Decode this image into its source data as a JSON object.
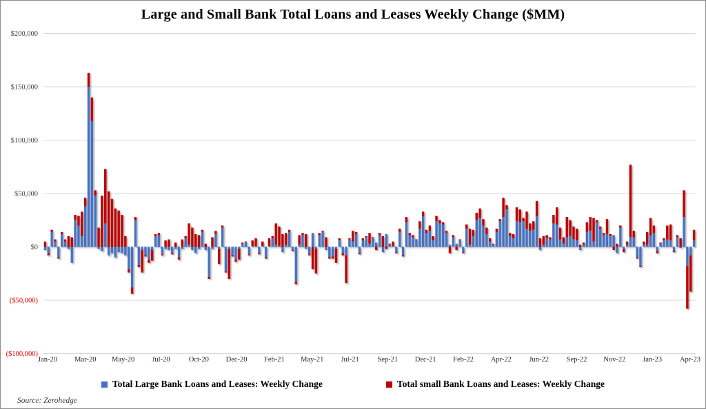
{
  "source": "Source: Zerohedge",
  "chart_data": {
    "type": "bar",
    "stacked": true,
    "title": "Large and Small Bank Total Loans and Leases Weekly Change ($MM)",
    "xlabel": "",
    "ylabel": "",
    "ylim": [
      -100000,
      200000
    ],
    "grid": true,
    "legend_position": "bottom",
    "axis": {
      "y_tick_labels": [
        "$200,000",
        "$150,000",
        "$100,000",
        "$50,000",
        "$0",
        "($50,000)",
        "($100,000)"
      ],
      "y_tick_values": [
        200000,
        150000,
        100000,
        50000,
        0,
        -50000,
        -100000
      ],
      "positive_tick_color": "#404040",
      "negative_tick_color": "#e00000",
      "x_tick_labels": [
        "Jan-20",
        "Mar-20",
        "May-20",
        "Jul-20",
        "Oct-20",
        "Dec-20",
        "Feb-21",
        "May-21",
        "Jul-21",
        "Sep-21",
        "Dec-21",
        "Feb-22",
        "Apr-22",
        "Jun-22",
        "Sep-22",
        "Nov-22",
        "Jan-23",
        "Apr-23"
      ],
      "gridline_color": "#d9d9d9",
      "zero_line_color": "#1a1a1a"
    },
    "series": [
      {
        "name": "Total Large Bank Loans and Leases: Weekly Change",
        "color": "#4472C4",
        "values": [
          -3000,
          -6000,
          14000,
          5000,
          -10000,
          12000,
          5000,
          -2000,
          -15000,
          25000,
          20000,
          10000,
          38000,
          150000,
          118000,
          48000,
          -2000,
          -4000,
          22000,
          -8000,
          -6000,
          -10000,
          -5000,
          -6000,
          -8000,
          -21000,
          -38000,
          25000,
          -17000,
          -3000,
          -8000,
          -12000,
          -3000,
          10000,
          11000,
          -7000,
          -2000,
          -3000,
          -6000,
          -2000,
          -10000,
          -2000,
          8000,
          2000,
          -3000,
          -6000,
          -2000,
          14000,
          -3000,
          -28000,
          -2000,
          12000,
          -2000,
          18000,
          -23000,
          -2000,
          -8000,
          -12000,
          -2000,
          3000,
          4000,
          -7000,
          1000,
          1000,
          -6000,
          1000,
          -10000,
          1000,
          8000,
          2000,
          1000,
          -5000,
          2000,
          14000,
          -3000,
          -33000,
          2000,
          11000,
          -2000,
          -7000,
          13000,
          -2000,
          11000,
          14000,
          -3000,
          -10000,
          -9000,
          -2000,
          6000,
          -6000,
          -8000,
          7000,
          5000,
          12000,
          -6000,
          6000,
          9000,
          3000,
          8000,
          4000,
          11000,
          -5000,
          12000,
          2000,
          1000,
          -5000,
          14000,
          -8000,
          23000,
          11000,
          9000,
          6000,
          17000,
          29000,
          13000,
          15000,
          6000,
          24000,
          22000,
          21000,
          13000,
          2000,
          9000,
          3000,
          6000,
          -5000,
          17000,
          2000,
          10000,
          25000,
          27000,
          20000,
          12000,
          5000,
          2000,
          14000,
          24000,
          28000,
          35000,
          10000,
          8000,
          24000,
          23000,
          24000,
          17000,
          15000,
          16000,
          29000,
          -3000,
          2000,
          8000,
          7000,
          22000,
          21000,
          7000,
          3000,
          9000,
          10000,
          7000,
          6000,
          -3000,
          2000,
          14000,
          15000,
          5000,
          23000,
          17000,
          11000,
          12000,
          10000,
          11000,
          -6000,
          18000,
          -2000,
          2000,
          9000,
          9000,
          -10000,
          -18000,
          2000,
          2000,
          11000,
          13000,
          -4000,
          3000,
          6000,
          7000,
          6000,
          -4000,
          9000,
          -1000,
          28000,
          -18000,
          -8000,
          6000
        ]
      },
      {
        "name": "Total small Bank Loans and Leases: Weekly Change",
        "color": "#C00000",
        "values": [
          5000,
          -2000,
          2000,
          2000,
          -1000,
          2000,
          2000,
          10000,
          9000,
          5000,
          9000,
          23000,
          8000,
          13000,
          22000,
          5000,
          18000,
          48000,
          51000,
          52000,
          45000,
          36000,
          34000,
          30000,
          10000,
          -3000,
          -6000,
          3000,
          -2000,
          -21000,
          -1000,
          -3000,
          -10000,
          2000,
          2000,
          -1000,
          6000,
          7000,
          -1000,
          4000,
          -2000,
          7000,
          2000,
          20000,
          18000,
          12000,
          11000,
          2000,
          3000,
          -2000,
          9000,
          3000,
          -14000,
          2000,
          -1000,
          -28000,
          -1000,
          -2000,
          -10000,
          1000,
          1000,
          -1000,
          5000,
          7000,
          -1000,
          4000,
          -1000,
          7000,
          2000,
          20000,
          18000,
          12000,
          11000,
          2000,
          -1000,
          -2000,
          9000,
          2000,
          12000,
          -1000,
          -21000,
          -23000,
          2000,
          1000,
          9000,
          -1000,
          -2000,
          -13000,
          2000,
          -2000,
          -26000,
          1000,
          10000,
          2000,
          -1000,
          2000,
          1000,
          10000,
          1000,
          -3000,
          2000,
          10000,
          -2000,
          1000,
          4000,
          -1000,
          3000,
          -1000,
          5000,
          2000,
          2000,
          1000,
          7000,
          4000,
          3000,
          5000,
          4000,
          5000,
          3000,
          2000,
          2000,
          -6000,
          2000,
          -3000,
          1000,
          -1000,
          4000,
          15000,
          6000,
          7000,
          9000,
          6000,
          6000,
          3000,
          1000,
          3000,
          2000,
          18000,
          4000,
          3000,
          4000,
          13000,
          12000,
          3000,
          16000,
          7000,
          8000,
          14000,
          8000,
          8000,
          3000,
          2000,
          8000,
          16000,
          11000,
          6000,
          19000,
          15000,
          12000,
          11000,
          2000,
          2000,
          9000,
          13000,
          22000,
          2000,
          2000,
          2000,
          14000,
          2000,
          -3000,
          3000,
          2000,
          -3000,
          3000,
          68000,
          6000,
          -1000,
          -1000,
          3000,
          12000,
          16000,
          7000,
          -2000,
          1000,
          2000,
          13000,
          15000,
          -1000,
          2000,
          8000,
          25000,
          -40000,
          -34000,
          10000
        ]
      }
    ]
  }
}
